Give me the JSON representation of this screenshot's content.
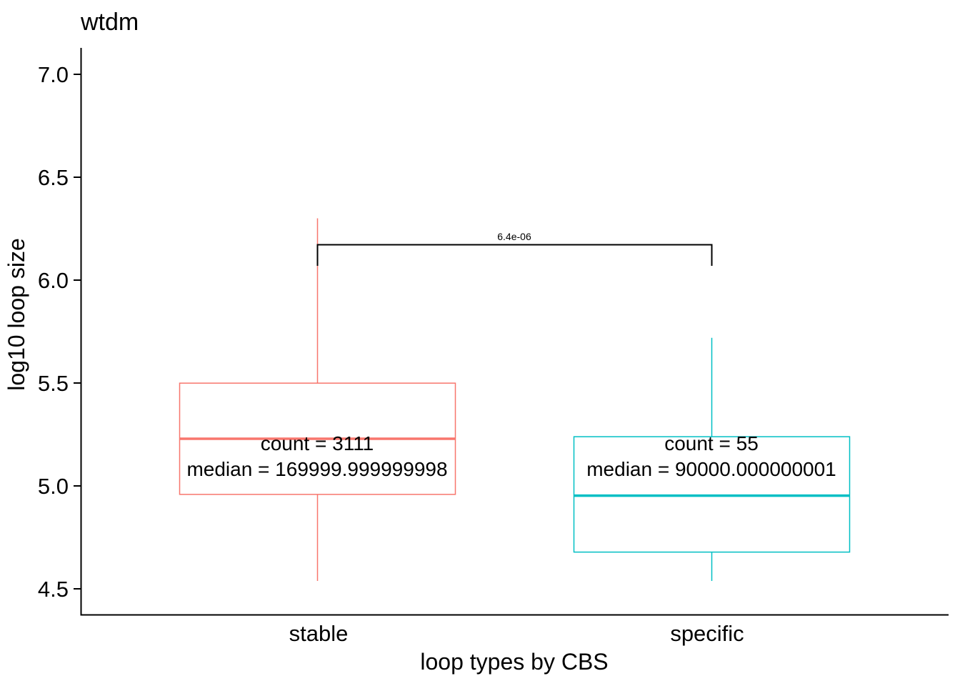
{
  "title": "wtdm",
  "axes": {
    "y_label": "log10 loop size",
    "x_label": "loop types by CBS",
    "y_ticks": [
      "7.0",
      "6.5",
      "6.0",
      "5.5",
      "5.0",
      "4.5"
    ],
    "x_categories": [
      "stable",
      "specific"
    ]
  },
  "annotations": {
    "stable_count": "count = 3111",
    "stable_median": "median = 169999.999999998",
    "specific_count": "count = 55",
    "specific_median": "median = 90000.000000001",
    "p_value": "6.4e-06"
  },
  "colors": {
    "stable": "#F8766D",
    "specific": "#00BFC4",
    "axis": "#000000",
    "background": "#ffffff"
  },
  "chart_data": {
    "type": "boxplot",
    "title": "wtdm",
    "xlabel": "loop types by CBS",
    "ylabel": "log10 loop size",
    "ylim": [
      4.38,
      7.13
    ],
    "yticks": [
      4.5,
      5.0,
      5.5,
      6.0,
      6.5,
      7.0
    ],
    "grid": "off",
    "categories": [
      "stable",
      "specific"
    ],
    "series": [
      {
        "name": "stable",
        "color": "#F8766D",
        "whisker_low": 4.54,
        "q1": 4.96,
        "median": 5.23,
        "q3": 5.5,
        "whisker_high": 6.3,
        "count": 3111,
        "median_raw": "169999.999999998"
      },
      {
        "name": "specific",
        "color": "#00BFC4",
        "whisker_low": 4.54,
        "q1": 4.68,
        "median": 4.954,
        "q3": 5.24,
        "whisker_high": 5.72,
        "count": 55,
        "median_raw": "90000.000000001"
      }
    ],
    "significance": {
      "groups": [
        "stable",
        "specific"
      ],
      "p_value": "6.4e-06"
    }
  }
}
